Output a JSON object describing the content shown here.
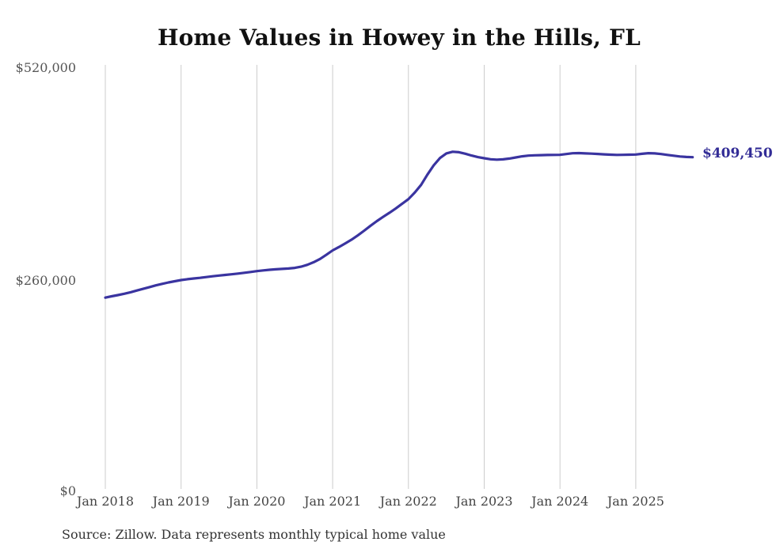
{
  "chart": {
    "title": "Home Values in Howey in the Hills, FL",
    "end_label": "$409,450",
    "source": "Source: Zillow. Data represents monthly typical home value"
  },
  "chart_data": {
    "type": "line",
    "title": "Home Values in Howey in the Hills, FL",
    "series_name": "Monthly typical home value",
    "frequency": "monthly",
    "x_start": "2018-01",
    "x_end": "2025-10",
    "months": [
      "2018-01",
      "2018-02",
      "2018-03",
      "2018-04",
      "2018-05",
      "2018-06",
      "2018-07",
      "2018-08",
      "2018-09",
      "2018-10",
      "2018-11",
      "2018-12",
      "2019-01",
      "2019-02",
      "2019-03",
      "2019-04",
      "2019-05",
      "2019-06",
      "2019-07",
      "2019-08",
      "2019-09",
      "2019-10",
      "2019-11",
      "2019-12",
      "2020-01",
      "2020-02",
      "2020-03",
      "2020-04",
      "2020-05",
      "2020-06",
      "2020-07",
      "2020-08",
      "2020-09",
      "2020-10",
      "2020-11",
      "2020-12",
      "2021-01",
      "2021-02",
      "2021-03",
      "2021-04",
      "2021-05",
      "2021-06",
      "2021-07",
      "2021-08",
      "2021-09",
      "2021-10",
      "2021-11",
      "2021-12",
      "2022-01",
      "2022-02",
      "2022-03",
      "2022-04",
      "2022-05",
      "2022-06",
      "2022-07",
      "2022-08",
      "2022-09",
      "2022-10",
      "2022-11",
      "2022-12",
      "2023-01",
      "2023-02",
      "2023-03",
      "2023-04",
      "2023-05",
      "2023-06",
      "2023-07",
      "2023-08",
      "2023-09",
      "2023-10",
      "2023-11",
      "2023-12",
      "2024-01",
      "2024-02",
      "2024-03",
      "2024-04",
      "2024-05",
      "2024-06",
      "2024-07",
      "2024-08",
      "2024-09",
      "2024-10",
      "2024-11",
      "2024-12",
      "2025-01",
      "2025-02",
      "2025-03",
      "2025-04",
      "2025-05",
      "2025-06",
      "2025-07",
      "2025-08",
      "2025-09",
      "2025-10"
    ],
    "values": [
      237000,
      238600,
      240100,
      241700,
      243600,
      245700,
      247800,
      249900,
      252000,
      253900,
      255600,
      257100,
      258500,
      259600,
      260500,
      261300,
      262200,
      263200,
      264100,
      264900,
      265600,
      266500,
      267500,
      268500,
      269500,
      270400,
      271200,
      271800,
      272200,
      272700,
      273500,
      275000,
      277300,
      280500,
      284500,
      289500,
      295000,
      299200,
      303600,
      308200,
      313600,
      319300,
      325300,
      331000,
      336200,
      341300,
      346600,
      352200,
      358000,
      366000,
      375500,
      388000,
      399500,
      408500,
      414200,
      416200,
      415600,
      413800,
      411500,
      409600,
      408200,
      407000,
      406500,
      406900,
      407800,
      409200,
      410600,
      411400,
      411800,
      412000,
      412200,
      412300,
      412400,
      413400,
      414300,
      414500,
      414200,
      413900,
      413500,
      413000,
      412600,
      412300,
      412400,
      412600,
      412800,
      413700,
      414400,
      414200,
      413400,
      412300,
      411300,
      410400,
      409800,
      409450
    ],
    "last_value": 409450,
    "last_value_label": "$409,450",
    "x_tick_labels": [
      "Jan 2018",
      "Jan 2019",
      "Jan 2020",
      "Jan 2021",
      "Jan 2022",
      "Jan 2023",
      "Jan 2024",
      "Jan 2025"
    ],
    "y_tick_labels": [
      "$0",
      "$260,000",
      "$520,000"
    ],
    "y_ticks": [
      0,
      260000,
      520000
    ],
    "ylim": [
      0,
      520000
    ],
    "xlabel": "",
    "ylabel": "",
    "legend_position": "none",
    "grid": "vertical-only",
    "line_color": "#3a34a0",
    "grid_color": "#cccccc",
    "source": "Source: Zillow. Data represents monthly typical home value"
  }
}
